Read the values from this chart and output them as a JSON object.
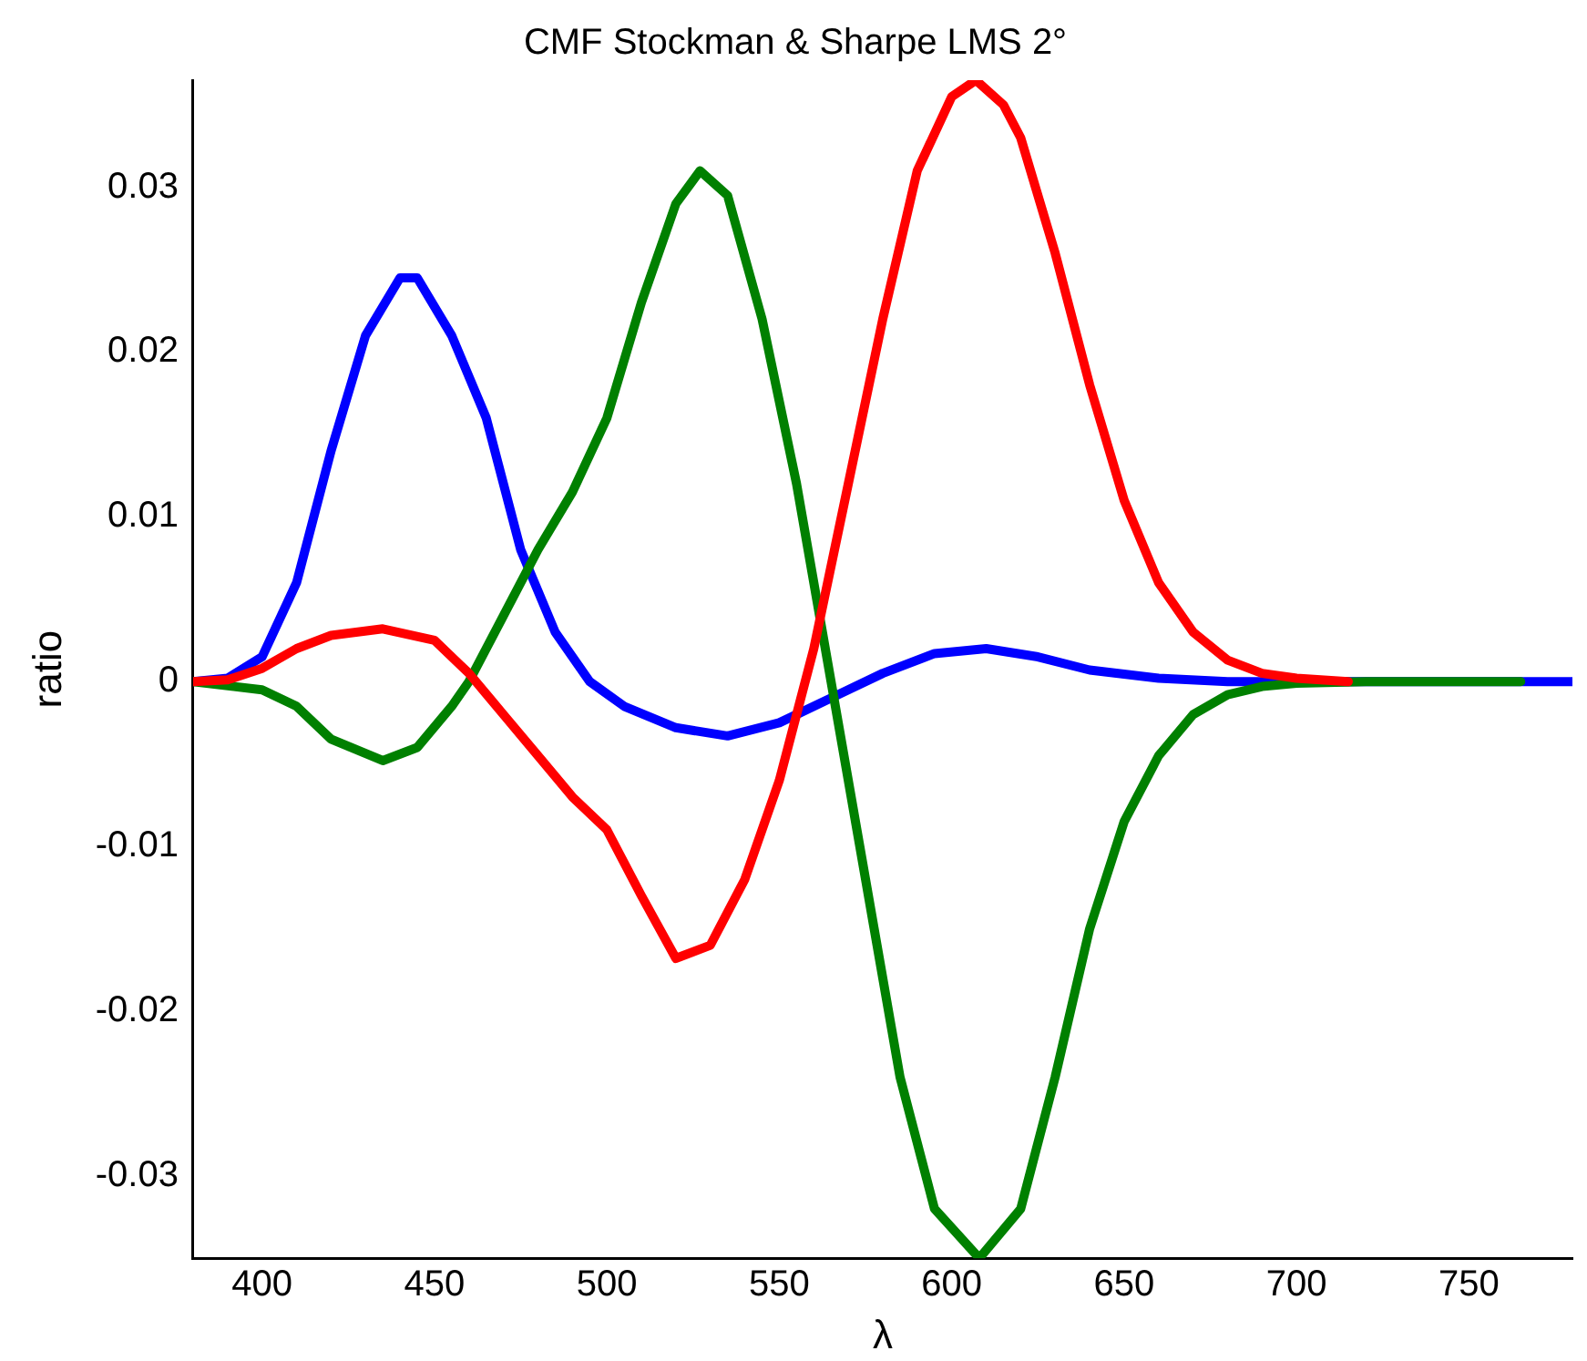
{
  "chart_data": {
    "type": "line",
    "title": "CMF Stockman & Sharpe LMS 2°",
    "xlabel": "λ",
    "ylabel": "ratio",
    "xlim": [
      380,
      780
    ],
    "ylim": [
      -0.035,
      0.0365
    ],
    "xticks": [
      400,
      450,
      500,
      550,
      600,
      650,
      700,
      750
    ],
    "yticks": [
      -0.03,
      -0.02,
      -0.01,
      0,
      0.01,
      0.02,
      0.03
    ],
    "marker": "none",
    "line_style": "solid",
    "series": [
      {
        "color": "#ff0000",
        "x": [
          380,
          390,
          400,
          410,
          420,
          435,
          450,
          460,
          470,
          480,
          490,
          500,
          510,
          520,
          530,
          540,
          550,
          560,
          570,
          580,
          590,
          600,
          607,
          615,
          620,
          630,
          640,
          650,
          660,
          670,
          680,
          690,
          700,
          715
        ],
        "values": [
          0,
          0.0001,
          0.0008,
          0.002,
          0.0028,
          0.0032,
          0.0025,
          0.0005,
          -0.002,
          -0.0045,
          -0.007,
          -0.009,
          -0.013,
          -0.0168,
          -0.016,
          -0.012,
          -0.006,
          0.002,
          0.012,
          0.022,
          0.031,
          0.0355,
          0.0365,
          0.035,
          0.033,
          0.026,
          0.018,
          0.011,
          0.006,
          0.003,
          0.0013,
          0.0005,
          0.0002,
          0
        ]
      },
      {
        "color": "#008000",
        "x": [
          380,
          400,
          410,
          420,
          435,
          445,
          455,
          460,
          470,
          480,
          490,
          500,
          510,
          520,
          527,
          535,
          545,
          555,
          565,
          575,
          585,
          595,
          608,
          620,
          630,
          640,
          650,
          660,
          670,
          680,
          690,
          700,
          720,
          765
        ],
        "values": [
          0,
          -0.0005,
          -0.0015,
          -0.0035,
          -0.0048,
          -0.004,
          -0.0015,
          0,
          0.004,
          0.008,
          0.0115,
          0.016,
          0.023,
          0.029,
          0.031,
          0.0295,
          0.022,
          0.012,
          0,
          -0.012,
          -0.024,
          -0.032,
          -0.035,
          -0.032,
          -0.024,
          -0.015,
          -0.0085,
          -0.0045,
          -0.002,
          -0.0008,
          -0.0003,
          -0.0001,
          0,
          0
        ]
      },
      {
        "color": "#0000ff",
        "x": [
          380,
          390,
          400,
          410,
          420,
          430,
          440,
          445,
          455,
          465,
          475,
          485,
          495,
          505,
          520,
          535,
          550,
          565,
          580,
          595,
          610,
          625,
          640,
          660,
          680,
          780
        ],
        "values": [
          0,
          0.0002,
          0.0015,
          0.006,
          0.014,
          0.021,
          0.0245,
          0.0245,
          0.021,
          0.016,
          0.008,
          0.003,
          0,
          -0.0015,
          -0.0028,
          -0.0033,
          -0.0025,
          -0.001,
          0.0005,
          0.0017,
          0.002,
          0.0015,
          0.0007,
          0.0002,
          0,
          0
        ]
      }
    ]
  }
}
